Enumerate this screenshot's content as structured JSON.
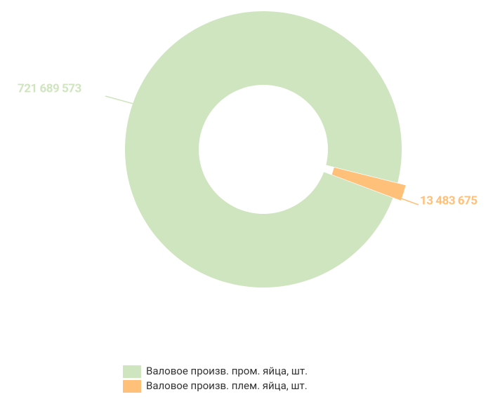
{
  "chart_data": {
    "type": "pie",
    "categories": [
      "Валовое произв. пром. яйца, шт.",
      "Валовое произв. плем. яйца, шт."
    ],
    "values": [
      721689573,
      13483675
    ],
    "value_labels": [
      "721 689 573",
      "13 483 675"
    ],
    "colors": [
      "#cfe5bf",
      "#ffc07a"
    ],
    "donut": true
  }
}
